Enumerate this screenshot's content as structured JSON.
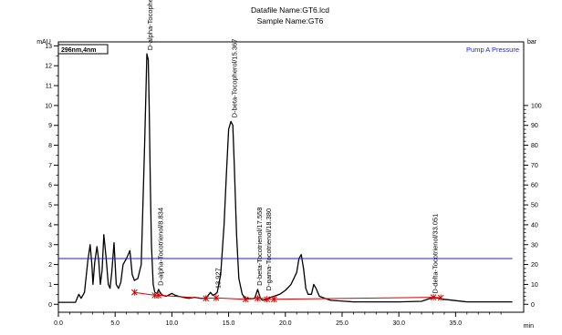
{
  "header": {
    "datafile": "Datafile Name:GT6.lcd",
    "sample": "Sample Name:GT6"
  },
  "chart_data": {
    "type": "line",
    "detector_label": "296nm,4nm",
    "y_unit": "mAU",
    "y2_unit": "bar",
    "x_unit": "min",
    "xlim": [
      0,
      41
    ],
    "ylim": [
      -0.4,
      13.2
    ],
    "y2lim": [
      -4,
      132
    ],
    "x_ticks": [
      "0.0",
      "5.0",
      "10.0",
      "15.0",
      "20.0",
      "25.0",
      "30.0",
      "35.0"
    ],
    "x_tick_values": [
      0,
      5,
      10,
      15,
      20,
      25,
      30,
      35
    ],
    "y_ticks": [
      "0",
      "1",
      "2",
      "3",
      "4",
      "5",
      "6",
      "7",
      "8",
      "9",
      "10",
      "11",
      "12",
      "13"
    ],
    "y_tick_values": [
      0,
      1,
      2,
      3,
      4,
      5,
      6,
      7,
      8,
      9,
      10,
      11,
      12,
      13
    ],
    "y2_ticks": [
      "0",
      "10",
      "20",
      "30",
      "40",
      "50",
      "60",
      "70",
      "80",
      "90",
      "100"
    ],
    "y2_tick_values": [
      0,
      10,
      20,
      30,
      40,
      50,
      60,
      70,
      80,
      90,
      100
    ],
    "series": [
      {
        "name": "",
        "axis": "left",
        "color": "#000000",
        "x": [
          0.0,
          1.5,
          1.8,
          2.0,
          2.3,
          2.6,
          2.8,
          2.95,
          3.05,
          3.2,
          3.4,
          3.55,
          3.7,
          3.85,
          4.0,
          4.2,
          4.4,
          4.55,
          4.7,
          4.9,
          5.1,
          5.3,
          5.5,
          5.7,
          6.0,
          6.3,
          6.5,
          6.7,
          7.0,
          7.3,
          7.6,
          7.8,
          7.92,
          8.0,
          8.1,
          8.2,
          8.35,
          8.5,
          8.7,
          8.83,
          9.0,
          9.2,
          9.5,
          10.0,
          10.3,
          10.6,
          11.0,
          11.5,
          12.0,
          12.5,
          13.0,
          13.4,
          13.6,
          13.8,
          14.0,
          14.3,
          14.6,
          14.8,
          15.0,
          15.2,
          15.37,
          15.5,
          15.7,
          15.9,
          16.2,
          16.5,
          17.0,
          17.3,
          17.56,
          17.8,
          18.0,
          18.38,
          18.7,
          19.0,
          19.5,
          20.0,
          20.5,
          21.0,
          21.2,
          21.4,
          21.6,
          21.8,
          22.0,
          22.3,
          22.5,
          22.7,
          23.0,
          23.5,
          24.0,
          26.0,
          28.0,
          30.0,
          32.0,
          33.05,
          34.0,
          36.0,
          38.0,
          40.0
        ],
        "y": [
          0.1,
          0.1,
          0.5,
          0.3,
          0.6,
          2.2,
          3.0,
          2.0,
          1.0,
          2.1,
          2.9,
          2.2,
          1.0,
          1.7,
          3.5,
          2.4,
          1.0,
          0.8,
          1.6,
          3.1,
          1.0,
          0.8,
          1.1,
          2.0,
          2.3,
          2.7,
          1.5,
          1.2,
          1.3,
          2.0,
          8.0,
          12.6,
          12.3,
          10.0,
          6.0,
          3.0,
          1.0,
          0.6,
          0.55,
          0.75,
          0.55,
          0.45,
          0.4,
          0.55,
          0.45,
          0.4,
          0.35,
          0.3,
          0.35,
          0.3,
          0.3,
          0.6,
          0.45,
          0.5,
          0.6,
          1.5,
          4.0,
          6.5,
          8.8,
          9.2,
          9.0,
          7.0,
          3.5,
          1.3,
          0.5,
          0.3,
          0.28,
          0.3,
          0.75,
          0.3,
          0.2,
          0.25,
          0.35,
          0.4,
          0.5,
          0.7,
          1.0,
          1.6,
          2.3,
          2.5,
          1.8,
          0.8,
          0.5,
          0.5,
          1.0,
          0.8,
          0.4,
          0.3,
          0.2,
          0.12,
          0.12,
          0.12,
          0.15,
          0.35,
          0.25,
          0.12,
          0.12,
          0.12
        ]
      },
      {
        "name": "Pump A Pressure",
        "axis": "right",
        "color": "#1a1aff",
        "x": [
          0,
          40
        ],
        "y": [
          23,
          23
        ]
      },
      {
        "name": "",
        "axis": "left",
        "color": "#e00000",
        "x": [
          6.7,
          8.5,
          8.83,
          13.0,
          13.9,
          16.5,
          17.56,
          18.0,
          18.38,
          19.0,
          33.05,
          33.7
        ],
        "y": [
          0.6,
          0.45,
          0.45,
          0.3,
          0.32,
          0.25,
          0.3,
          0.3,
          0.25,
          0.25,
          0.35,
          0.33
        ]
      }
    ],
    "peak_labels": [
      {
        "text": "D-alpha-Tocopherol/7.938",
        "x": 7.938,
        "y": 12.6
      },
      {
        "text": "D-alpha-Tocotrienol/8.834",
        "x": 8.834,
        "y": 0.75
      },
      {
        "text": "13.927",
        "x": 13.927,
        "y": 0.6
      },
      {
        "text": "D-beta-Tocopherol/15.367",
        "x": 15.367,
        "y": 9.2
      },
      {
        "text": "D-beta-Tocotrienol/17.558",
        "x": 17.558,
        "y": 0.75
      },
      {
        "text": "D-gama-Tocotrienol/18.380",
        "x": 18.38,
        "y": 0.5
      },
      {
        "text": "D-delta-Tocotrienol/33.051",
        "x": 33.051,
        "y": 0.35
      }
    ],
    "integration_markers_x": [
      6.7,
      8.5,
      8.83,
      13.0,
      13.9,
      16.5,
      17.56,
      18.38,
      19.0,
      33.05,
      33.7
    ],
    "integration_markers_y": [
      0.6,
      0.45,
      0.45,
      0.3,
      0.32,
      0.25,
      0.3,
      0.25,
      0.25,
      0.35,
      0.33
    ],
    "grid": false,
    "legend_position": "top-right"
  }
}
